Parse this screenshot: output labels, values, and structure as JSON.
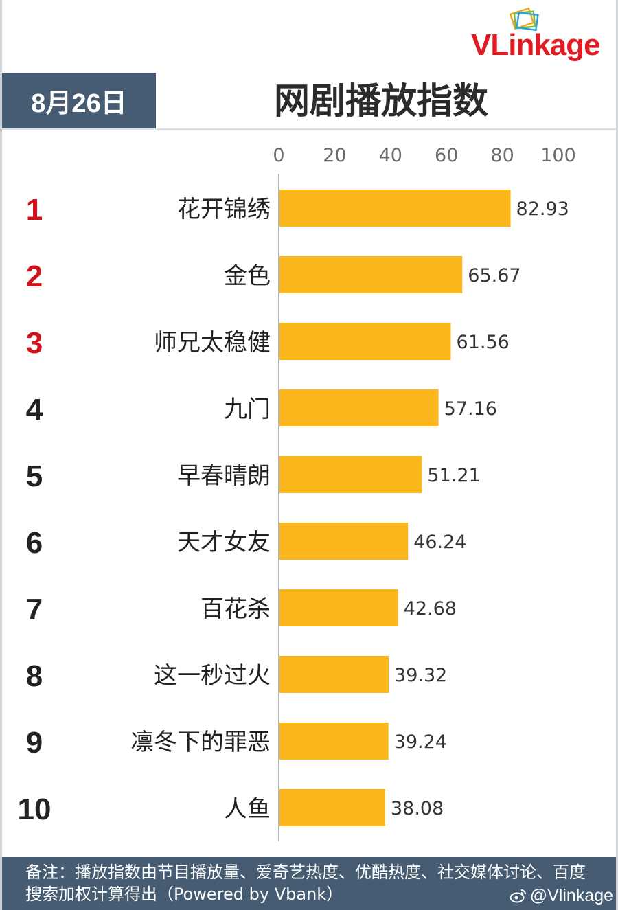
{
  "header": {
    "date": "8月26日",
    "title": "网剧播放指数",
    "logo_text": "VLinkage"
  },
  "chart_data": {
    "type": "bar",
    "orientation": "horizontal",
    "title": "网剧播放指数",
    "xlim": [
      0,
      100
    ],
    "xticks": [
      0,
      20,
      40,
      60,
      80,
      100
    ],
    "ranks": [
      "1",
      "2",
      "3",
      "4",
      "5",
      "6",
      "7",
      "8",
      "9",
      "10"
    ],
    "categories": [
      "花开锦绣",
      "金色",
      "师兄太稳健",
      "九门",
      "早春晴朗",
      "天才女友",
      "百花杀",
      "这一秒过火",
      "凛冬下的罪恶",
      "人鱼"
    ],
    "values": [
      82.93,
      65.67,
      61.56,
      57.16,
      51.21,
      46.24,
      42.68,
      39.32,
      39.24,
      38.08
    ],
    "value_labels": [
      "82.93",
      "65.67",
      "61.56",
      "57.16",
      "51.21",
      "46.24",
      "42.68",
      "39.32",
      "39.24",
      "38.08"
    ],
    "bar_color": "#fcb71d",
    "top_rank_color": "#d0121b",
    "rank_color": "#222222",
    "grid": false,
    "legend": "none"
  },
  "footer": {
    "note": "备注：播放指数由节目播放量、爱奇艺热度、优酷热度、社交媒体讨论、百度搜索加权计算得出（Powered by Vbank）",
    "handle": "@Vlinkage"
  },
  "colors": {
    "header_bg": "#465c72",
    "accent_red": "#e21b23"
  }
}
